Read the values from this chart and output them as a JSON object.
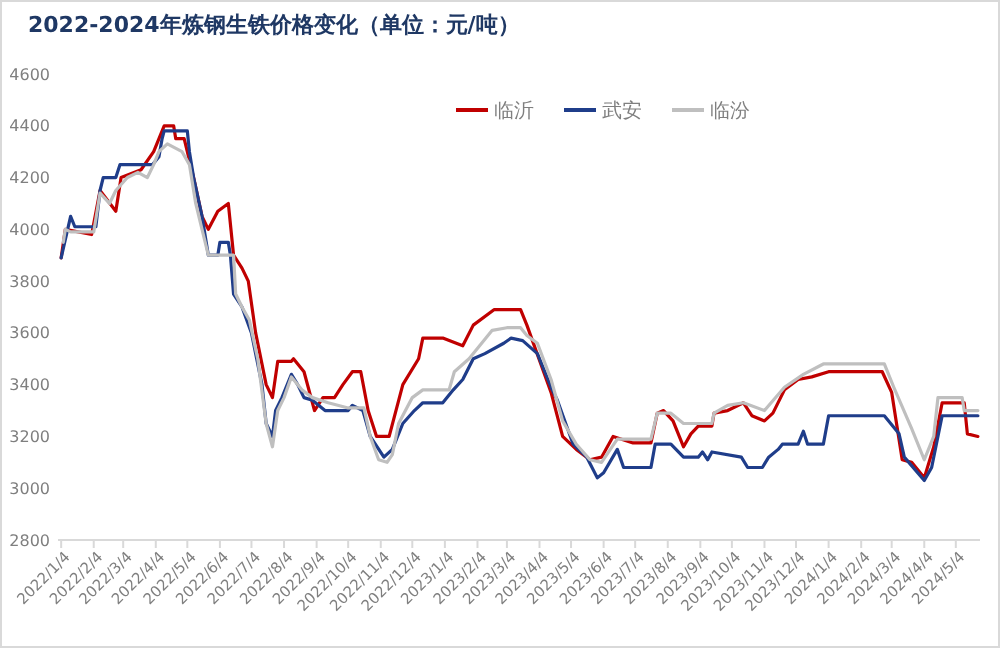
{
  "chart_data": {
    "type": "line",
    "title": "2022-2024年炼钢生铁价格变化（单位：元/吨）",
    "xlim": [
      "2022-01-01",
      "2024-05-27"
    ],
    "xticks": [
      {
        "value": "2022-01-04",
        "label": "2022/1/4"
      },
      {
        "value": "2022-02-04",
        "label": "2022/2/4"
      },
      {
        "value": "2022-03-04",
        "label": "2022/3/4"
      },
      {
        "value": "2022-04-04",
        "label": "2022/4/4"
      },
      {
        "value": "2022-05-04",
        "label": "2022/5/4"
      },
      {
        "value": "2022-06-04",
        "label": "2022/6/4"
      },
      {
        "value": "2022-07-04",
        "label": "2022/7/4"
      },
      {
        "value": "2022-08-04",
        "label": "2022/8/4"
      },
      {
        "value": "2022-09-04",
        "label": "2022/9/4"
      },
      {
        "value": "2022-10-04",
        "label": "2022/10/4"
      },
      {
        "value": "2022-11-04",
        "label": "2022/11/4"
      },
      {
        "value": "2022-12-04",
        "label": "2022/12/4"
      },
      {
        "value": "2023-01-04",
        "label": "2023/1/4"
      },
      {
        "value": "2023-02-04",
        "label": "2023/2/4"
      },
      {
        "value": "2023-03-04",
        "label": "2023/3/4"
      },
      {
        "value": "2023-04-04",
        "label": "2023/4/4"
      },
      {
        "value": "2023-05-04",
        "label": "2023/5/4"
      },
      {
        "value": "2023-06-04",
        "label": "2023/6/4"
      },
      {
        "value": "2023-07-04",
        "label": "2023/7/4"
      },
      {
        "value": "2023-08-04",
        "label": "2023/8/4"
      },
      {
        "value": "2023-09-04",
        "label": "2023/9/4"
      },
      {
        "value": "2023-10-04",
        "label": "2023/10/4"
      },
      {
        "value": "2023-11-04",
        "label": "2023/11/4"
      },
      {
        "value": "2023-12-04",
        "label": "2023/12/4"
      },
      {
        "value": "2024-01-04",
        "label": "2024/1/4"
      },
      {
        "value": "2024-02-04",
        "label": "2024/2/4"
      },
      {
        "value": "2024-03-04",
        "label": "2024/3/4"
      },
      {
        "value": "2024-04-04",
        "label": "2024/4/4"
      },
      {
        "value": "2024-05-04",
        "label": "2024/5/4"
      }
    ],
    "ylim": [
      2800,
      4600
    ],
    "yticks": [
      2800,
      3000,
      3200,
      3400,
      3600,
      3800,
      4000,
      4200,
      4400,
      4600
    ],
    "grid": false,
    "legend": "top right",
    "marker": "none",
    "line_style": "solid",
    "series": [
      {
        "name": "临沂",
        "color": "#c00000",
        "x": [
          "2022-01-04",
          "2022-01-08",
          "2022-02-02",
          "2022-02-10",
          "2022-02-25",
          "2022-03-02",
          "2022-03-21",
          "2022-04-02",
          "2022-04-12",
          "2022-04-21",
          "2022-04-23",
          "2022-05-01",
          "2022-05-10",
          "2022-05-18",
          "2022-05-24",
          "2022-06-02",
          "2022-06-12",
          "2022-06-17",
          "2022-06-25",
          "2022-07-01",
          "2022-07-08",
          "2022-07-18",
          "2022-07-24",
          "2022-07-29",
          "2022-08-11",
          "2022-08-13",
          "2022-08-23",
          "2022-09-02",
          "2022-09-10",
          "2022-09-21",
          "2022-09-29",
          "2022-10-08",
          "2022-10-16",
          "2022-10-23",
          "2022-10-31",
          "2022-11-12",
          "2022-11-25",
          "2022-12-10",
          "2022-12-14",
          "2023-01-02",
          "2023-01-21",
          "2023-01-31",
          "2023-02-20",
          "2023-03-17",
          "2023-03-23",
          "2023-04-15",
          "2023-04-26",
          "2023-05-09",
          "2023-05-22",
          "2023-06-02",
          "2023-06-13",
          "2023-07-02",
          "2023-07-19",
          "2023-07-25",
          "2023-07-31",
          "2023-08-09",
          "2023-08-19",
          "2023-08-26",
          "2023-09-02",
          "2023-09-15",
          "2023-09-17",
          "2023-09-30",
          "2023-10-15",
          "2023-10-23",
          "2023-11-04",
          "2023-11-12",
          "2023-11-23",
          "2023-12-06",
          "2023-12-19",
          "2024-01-04",
          "2024-02-24",
          "2024-03-04",
          "2024-03-14",
          "2024-03-23",
          "2024-04-04",
          "2024-04-13",
          "2024-04-21",
          "2024-05-12",
          "2024-05-15",
          "2024-05-25"
        ],
        "values": [
          3890,
          4000,
          3980,
          4150,
          4070,
          4200,
          4230,
          4300,
          4400,
          4400,
          4350,
          4350,
          4200,
          4050,
          4000,
          4070,
          4100,
          3900,
          3850,
          3800,
          3600,
          3400,
          3350,
          3490,
          3490,
          3500,
          3450,
          3300,
          3350,
          3350,
          3400,
          3450,
          3450,
          3300,
          3200,
          3200,
          3400,
          3500,
          3580,
          3580,
          3550,
          3630,
          3690,
          3690,
          3630,
          3370,
          3200,
          3150,
          3110,
          3120,
          3200,
          3175,
          3175,
          3290,
          3300,
          3260,
          3160,
          3210,
          3240,
          3240,
          3290,
          3300,
          3330,
          3280,
          3260,
          3290,
          3380,
          3420,
          3430,
          3450,
          3450,
          3370,
          3110,
          3100,
          3040,
          3160,
          3330,
          3330,
          3210,
          3200
        ]
      },
      {
        "name": "武安",
        "color": "#1f3d8a",
        "x": [
          "2022-01-04",
          "2022-01-13",
          "2022-01-17",
          "2022-02-06",
          "2022-02-10",
          "2022-02-13",
          "2022-02-25",
          "2022-03-01",
          "2022-04-01",
          "2022-04-07",
          "2022-04-10",
          "2022-04-12",
          "2022-05-04",
          "2022-05-06",
          "2022-05-10",
          "2022-05-18",
          "2022-05-24",
          "2022-06-02",
          "2022-06-04",
          "2022-06-12",
          "2022-06-14",
          "2022-06-17",
          "2022-06-25",
          "2022-07-04",
          "2022-07-14",
          "2022-07-18",
          "2022-07-24",
          "2022-07-27",
          "2022-08-02",
          "2022-08-11",
          "2022-08-17",
          "2022-08-23",
          "2022-08-31",
          "2022-09-12",
          "2022-10-04",
          "2022-10-08",
          "2022-10-18",
          "2022-10-25",
          "2022-11-07",
          "2022-11-15",
          "2022-11-25",
          "2022-12-06",
          "2022-12-14",
          "2023-01-02",
          "2023-01-12",
          "2023-01-21",
          "2023-01-31",
          "2023-02-11",
          "2023-03-01",
          "2023-03-08",
          "2023-03-19",
          "2023-04-02",
          "2023-04-15",
          "2023-04-21",
          "2023-05-06",
          "2023-05-19",
          "2023-05-29",
          "2023-06-04",
          "2023-06-17",
          "2023-06-23",
          "2023-07-19",
          "2023-07-23",
          "2023-08-07",
          "2023-08-19",
          "2023-09-02",
          "2023-09-06",
          "2023-09-11",
          "2023-09-15",
          "2023-10-13",
          "2023-10-19",
          "2023-11-02",
          "2023-11-08",
          "2023-11-17",
          "2023-11-21",
          "2023-12-06",
          "2023-12-11",
          "2023-12-15",
          "2023-12-30",
          "2024-01-04",
          "2024-02-26",
          "2024-03-11",
          "2024-03-16",
          "2024-04-04",
          "2024-04-11",
          "2024-04-21",
          "2024-05-25"
        ],
        "values": [
          3890,
          4050,
          4010,
          4010,
          4150,
          4200,
          4200,
          4250,
          4250,
          4280,
          4350,
          4380,
          4380,
          4300,
          4200,
          4050,
          3900,
          3900,
          3950,
          3950,
          3900,
          3750,
          3700,
          3600,
          3400,
          3250,
          3200,
          3300,
          3350,
          3440,
          3400,
          3350,
          3340,
          3300,
          3300,
          3320,
          3300,
          3200,
          3120,
          3150,
          3250,
          3300,
          3330,
          3330,
          3380,
          3420,
          3500,
          3520,
          3560,
          3580,
          3570,
          3520,
          3390,
          3340,
          3170,
          3120,
          3040,
          3060,
          3150,
          3080,
          3080,
          3170,
          3170,
          3120,
          3120,
          3140,
          3110,
          3140,
          3120,
          3080,
          3080,
          3120,
          3150,
          3170,
          3170,
          3220,
          3170,
          3170,
          3280,
          3280,
          3210,
          3120,
          3030,
          3080,
          3280,
          3280
        ]
      },
      {
        "name": "临汾",
        "color": "#bfbfbf",
        "x": [
          "2022-01-06",
          "2022-01-08",
          "2022-01-13",
          "2022-02-04",
          "2022-02-10",
          "2022-02-19",
          "2022-02-25",
          "2022-03-08",
          "2022-03-18",
          "2022-03-27",
          "2022-04-02",
          "2022-04-07",
          "2022-04-15",
          "2022-04-29",
          "2022-05-06",
          "2022-05-12",
          "2022-05-18",
          "2022-05-24",
          "2022-06-17",
          "2022-06-19",
          "2022-06-25",
          "2022-07-02",
          "2022-07-10",
          "2022-07-18",
          "2022-07-24",
          "2022-07-29",
          "2022-08-04",
          "2022-08-11",
          "2022-08-21",
          "2022-08-31",
          "2022-09-15",
          "2022-10-04",
          "2022-10-19",
          "2022-10-25",
          "2022-11-02",
          "2022-11-10",
          "2022-11-15",
          "2022-11-21",
          "2022-12-04",
          "2022-12-14",
          "2023-01-08",
          "2023-01-13",
          "2023-01-27",
          "2023-02-18",
          "2023-03-04",
          "2023-03-17",
          "2023-03-23",
          "2023-04-02",
          "2023-04-15",
          "2023-04-26",
          "2023-05-09",
          "2023-05-22",
          "2023-06-02",
          "2023-06-17",
          "2023-07-19",
          "2023-07-25",
          "2023-08-07",
          "2023-08-19",
          "2023-09-15",
          "2023-09-17",
          "2023-09-30",
          "2023-10-15",
          "2023-11-04",
          "2023-11-23",
          "2023-12-11",
          "2023-12-30",
          "2024-02-26",
          "2024-03-06",
          "2024-03-23",
          "2024-04-04",
          "2024-04-13",
          "2024-04-17",
          "2024-05-10",
          "2024-05-12",
          "2024-05-25"
        ],
        "values": [
          3950,
          4000,
          3990,
          3990,
          4140,
          4100,
          4150,
          4200,
          4220,
          4200,
          4250,
          4300,
          4330,
          4300,
          4250,
          4100,
          4000,
          3900,
          3900,
          3750,
          3700,
          3650,
          3500,
          3250,
          3160,
          3300,
          3350,
          3430,
          3380,
          3350,
          3330,
          3310,
          3310,
          3200,
          3110,
          3100,
          3130,
          3250,
          3350,
          3380,
          3380,
          3450,
          3500,
          3610,
          3620,
          3620,
          3590,
          3560,
          3420,
          3260,
          3170,
          3110,
          3100,
          3190,
          3190,
          3290,
          3290,
          3250,
          3250,
          3290,
          3320,
          3330,
          3300,
          3390,
          3440,
          3480,
          3480,
          3390,
          3230,
          3110,
          3200,
          3350,
          3350,
          3300,
          3300
        ]
      }
    ]
  }
}
